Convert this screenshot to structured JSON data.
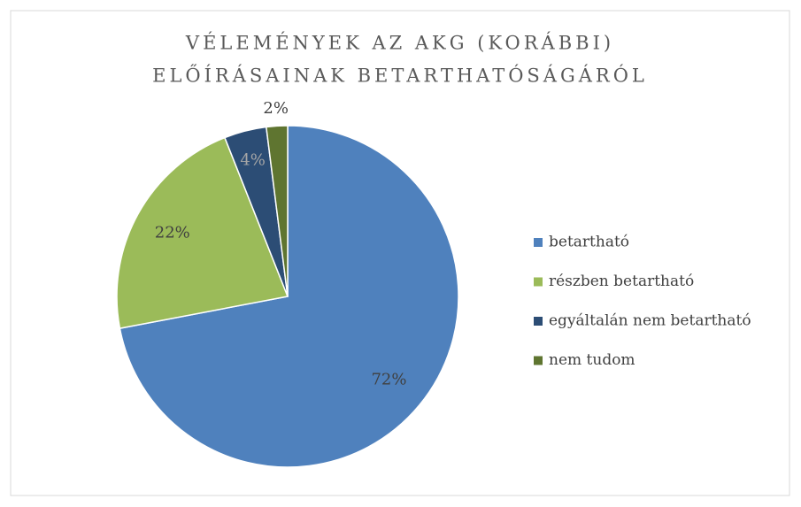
{
  "chart_data": {
    "type": "pie",
    "title": [
      "VÉLEMÉNYEK AZ AKG (KORÁBBI)",
      "ELŐÍRÁSAINAK BETARTHATÓSÁGÁRÓL"
    ],
    "categories": [
      "betartható",
      "részben betartható",
      "egyáltalán nem betartható",
      "nem tudom"
    ],
    "values": [
      72,
      22,
      4,
      2
    ],
    "value_labels": [
      "72%",
      "22%",
      "4%",
      "2%"
    ],
    "colors": [
      "#4f81bd",
      "#9bbb59",
      "#2c4d75",
      "#5f7530"
    ],
    "legend": "right"
  }
}
